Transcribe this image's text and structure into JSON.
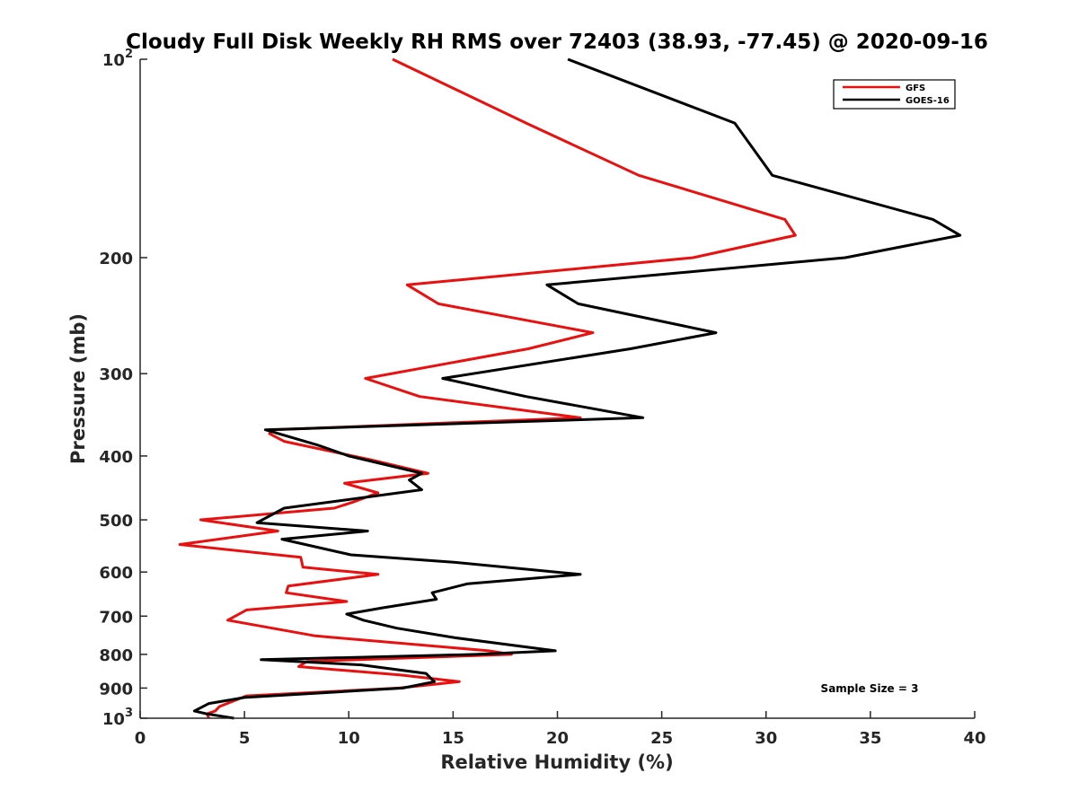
{
  "chart_data": {
    "type": "line",
    "title": "Cloudy Full Disk Weekly RH RMS over 72403 (38.93, -77.45) @ 2020-09-16",
    "xlabel": "Relative Humidity (%)",
    "ylabel": "Pressure (mb)",
    "xlim": [
      0,
      40
    ],
    "ylim": [
      100,
      1000
    ],
    "yscale": "log",
    "y_reversed": true,
    "grid": false,
    "legend_position": "top-right",
    "x_ticks": [
      {
        "value": 0,
        "label": "0"
      },
      {
        "value": 5,
        "label": "5"
      },
      {
        "value": 10,
        "label": "10"
      },
      {
        "value": 15,
        "label": "15"
      },
      {
        "value": 20,
        "label": "20"
      },
      {
        "value": 25,
        "label": "25"
      },
      {
        "value": 30,
        "label": "30"
      },
      {
        "value": 35,
        "label": "35"
      },
      {
        "value": 40,
        "label": "40"
      }
    ],
    "y_ticks": [
      {
        "value": 100,
        "label": "10",
        "sup": "2"
      },
      {
        "value": 200,
        "label": "200",
        "sup": ""
      },
      {
        "value": 300,
        "label": "300",
        "sup": ""
      },
      {
        "value": 400,
        "label": "400",
        "sup": ""
      },
      {
        "value": 500,
        "label": "500",
        "sup": ""
      },
      {
        "value": 600,
        "label": "600",
        "sup": ""
      },
      {
        "value": 700,
        "label": "700",
        "sup": ""
      },
      {
        "value": 800,
        "label": "800",
        "sup": ""
      },
      {
        "value": 900,
        "label": "900",
        "sup": ""
      },
      {
        "value": 1000,
        "label": "10",
        "sup": "3"
      }
    ],
    "series": [
      {
        "name": "GFS",
        "color": "#e8110f",
        "points": [
          [
            12.1,
            100
          ],
          [
            18.5,
            125
          ],
          [
            23.9,
            150
          ],
          [
            30.9,
            175
          ],
          [
            31.4,
            185
          ],
          [
            26.5,
            200
          ],
          [
            12.8,
            220
          ],
          [
            14.3,
            235
          ],
          [
            21.7,
            260
          ],
          [
            18.6,
            275
          ],
          [
            10.8,
            305
          ],
          [
            13.4,
            325
          ],
          [
            21.1,
            350
          ],
          [
            6.4,
            365
          ],
          [
            6.2,
            370
          ],
          [
            6.9,
            380
          ],
          [
            11.0,
            405
          ],
          [
            13.8,
            425
          ],
          [
            9.8,
            440
          ],
          [
            11.4,
            455
          ],
          [
            10.2,
            470
          ],
          [
            9.3,
            480
          ],
          [
            2.9,
            500
          ],
          [
            6.6,
            520
          ],
          [
            1.9,
            545
          ],
          [
            7.7,
            570
          ],
          [
            7.8,
            590
          ],
          [
            11.4,
            605
          ],
          [
            7.1,
            630
          ],
          [
            7.0,
            645
          ],
          [
            9.9,
            665
          ],
          [
            5.1,
            685
          ],
          [
            4.2,
            710
          ],
          [
            8.4,
            750
          ],
          [
            16.7,
            790
          ],
          [
            17.8,
            800
          ],
          [
            8.0,
            820
          ],
          [
            7.6,
            835
          ],
          [
            12.5,
            860
          ],
          [
            15.3,
            880
          ],
          [
            12.4,
            900
          ],
          [
            5.1,
            925
          ],
          [
            3.8,
            960
          ],
          [
            3.6,
            975
          ],
          [
            3.2,
            985
          ],
          [
            3.3,
            1000
          ]
        ]
      },
      {
        "name": "GOES-16",
        "color": "#000000",
        "points": [
          [
            20.5,
            100
          ],
          [
            28.5,
            125
          ],
          [
            30.3,
            150
          ],
          [
            38.0,
            175
          ],
          [
            39.3,
            185
          ],
          [
            33.8,
            200
          ],
          [
            19.5,
            220
          ],
          [
            21.0,
            235
          ],
          [
            27.6,
            260
          ],
          [
            23.5,
            275
          ],
          [
            14.5,
            305
          ],
          [
            18.5,
            325
          ],
          [
            24.1,
            350
          ],
          [
            6.0,
            365
          ],
          [
            8.5,
            385
          ],
          [
            10.0,
            400
          ],
          [
            13.5,
            425
          ],
          [
            12.9,
            435
          ],
          [
            13.5,
            450
          ],
          [
            6.9,
            480
          ],
          [
            5.6,
            505
          ],
          [
            10.9,
            520
          ],
          [
            6.8,
            535
          ],
          [
            10.1,
            565
          ],
          [
            15.1,
            580
          ],
          [
            21.1,
            605
          ],
          [
            15.7,
            625
          ],
          [
            14.0,
            645
          ],
          [
            14.2,
            660
          ],
          [
            11.6,
            680
          ],
          [
            9.9,
            695
          ],
          [
            10.7,
            710
          ],
          [
            12.3,
            730
          ],
          [
            15.1,
            755
          ],
          [
            19.9,
            790
          ],
          [
            16.1,
            800
          ],
          [
            5.8,
            815
          ],
          [
            10.6,
            830
          ],
          [
            13.7,
            855
          ],
          [
            14.1,
            880
          ],
          [
            12.6,
            900
          ],
          [
            5.0,
            930
          ],
          [
            3.3,
            950
          ],
          [
            2.6,
            975
          ],
          [
            3.2,
            985
          ],
          [
            4.5,
            1000
          ]
        ]
      }
    ],
    "annotations": [
      "Sample Size = 3"
    ]
  }
}
